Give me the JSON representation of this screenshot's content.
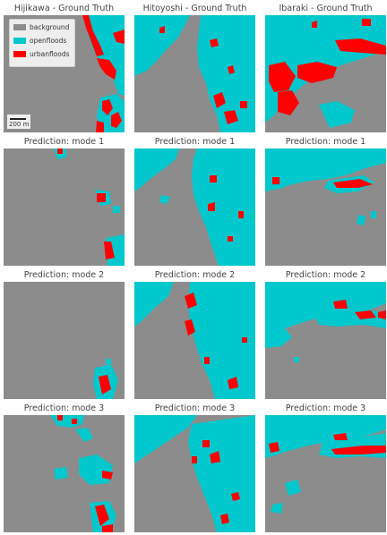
{
  "colors": {
    "background": "#8c8c8c",
    "openfloods": "#00c8cc",
    "urbanfloods": "#ff0000"
  },
  "columns": [
    "Hijikawa - Ground Truth",
    "Hitoyoshi - Ground Truth",
    "Ibaraki - Ground Truth"
  ],
  "rows": [
    "Prediction: mode 1",
    "Prediction: mode 2",
    "Prediction: mode 3"
  ],
  "legend": {
    "items": [
      {
        "label": "background",
        "color": "#8c8c8c"
      },
      {
        "label": "openfloods",
        "color": "#00c8cc"
      },
      {
        "label": "urbanfloods",
        "color": "#ff0000"
      }
    ]
  },
  "scalebar": {
    "label": "200 m"
  }
}
